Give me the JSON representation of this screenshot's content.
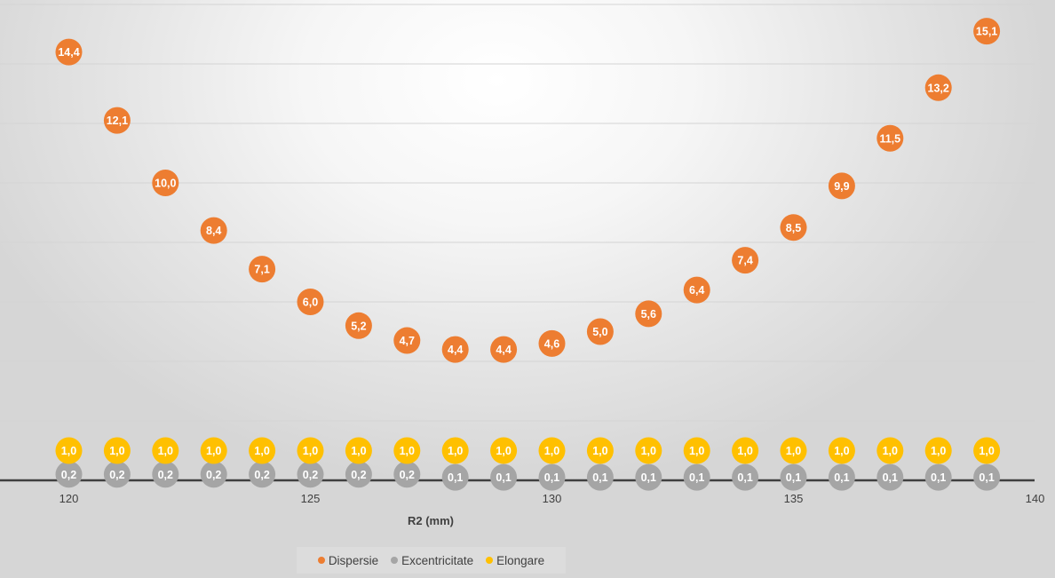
{
  "chart_data": {
    "type": "scatter",
    "title": "",
    "xlabel": "R2 (mm)",
    "ylabel": "",
    "xlim": [
      119,
      140
    ],
    "ylim": [
      0,
      16
    ],
    "x_ticks": [
      "120",
      "125",
      "130",
      "135",
      "140"
    ],
    "grid": true,
    "legend_position": "bottom",
    "x": [
      120,
      121,
      122,
      123,
      124,
      125,
      126,
      127,
      128,
      129,
      130,
      131,
      132,
      133,
      134,
      135,
      136,
      137,
      138,
      139
    ],
    "series": [
      {
        "name": "Dispersie",
        "color": "#ed7d31",
        "values": [
          14.4,
          12.1,
          10.0,
          8.4,
          7.1,
          6.0,
          5.2,
          4.7,
          4.4,
          4.4,
          4.6,
          5.0,
          5.6,
          6.4,
          7.4,
          8.5,
          9.9,
          11.5,
          13.2,
          15.1
        ],
        "labels": [
          "14,4",
          "12,1",
          "10,0",
          "8,4",
          "7,1",
          "6,0",
          "5,2",
          "4,7",
          "4,4",
          "4,4",
          "4,6",
          "5,0",
          "5,6",
          "6,4",
          "7,4",
          "8,5",
          "9,9",
          "11,5",
          "13,2",
          "15,1"
        ]
      },
      {
        "name": "Excentricitate",
        "color": "#a5a5a5",
        "values": [
          0.2,
          0.2,
          0.2,
          0.2,
          0.2,
          0.2,
          0.2,
          0.2,
          0.1,
          0.1,
          0.1,
          0.1,
          0.1,
          0.1,
          0.1,
          0.1,
          0.1,
          0.1,
          0.1,
          0.1
        ],
        "labels": [
          "0,2",
          "0,2",
          "0,2",
          "0,2",
          "0,2",
          "0,2",
          "0,2",
          "0,2",
          "0,1",
          "0,1",
          "0,1",
          "0,1",
          "0,1",
          "0,1",
          "0,1",
          "0,1",
          "0,1",
          "0,1",
          "0,1",
          "0,1"
        ]
      },
      {
        "name": "Elongare",
        "color": "#ffc000",
        "values": [
          1.0,
          1.0,
          1.0,
          1.0,
          1.0,
          1.0,
          1.0,
          1.0,
          1.0,
          1.0,
          1.0,
          1.0,
          1.0,
          1.0,
          1.0,
          1.0,
          1.0,
          1.0,
          1.0,
          1.0
        ],
        "labels": [
          "1,0",
          "1,0",
          "1,0",
          "1,0",
          "1,0",
          "1,0",
          "1,0",
          "1,0",
          "1,0",
          "1,0",
          "1,0",
          "1,0",
          "1,0",
          "1,0",
          "1,0",
          "1,0",
          "1,0",
          "1,0",
          "1,0",
          "1,0"
        ]
      }
    ]
  }
}
